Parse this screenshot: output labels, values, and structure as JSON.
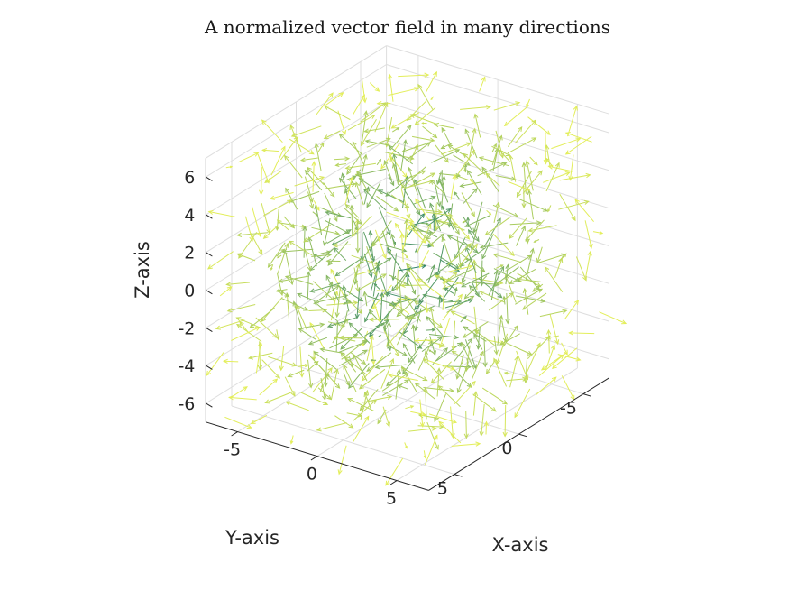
{
  "chart_data": {
    "type": "quiver3",
    "title": "A normalized vector field in many directions",
    "xlabel": "X-axis",
    "ylabel": "Y-axis",
    "zlabel": "Z-axis",
    "xlim": [
      -7,
      7
    ],
    "ylim": [
      -7,
      7
    ],
    "zlim": [
      -7,
      7
    ],
    "xticks": [
      -5,
      0,
      5
    ],
    "yticks": [
      -5,
      0,
      5
    ],
    "zticks": [
      -6,
      -4,
      -2,
      0,
      2,
      4,
      6
    ],
    "xtick_labels": [
      "-5",
      "0",
      "5"
    ],
    "ytick_labels": [
      "-5",
      "0",
      "5"
    ],
    "ztick_labels": [
      "-6",
      "-4",
      "-2",
      "0",
      "2",
      "4",
      "6"
    ],
    "grid": true,
    "normalized": true,
    "grid_points": [
      -6,
      -4,
      -2,
      0,
      2,
      4,
      6
    ],
    "colormap": "viridis-like",
    "color_center": "#1f7a6c",
    "color_edge": "#e3ee5a",
    "colors": {
      "grid": "#dedede",
      "axis": "#262626"
    }
  }
}
